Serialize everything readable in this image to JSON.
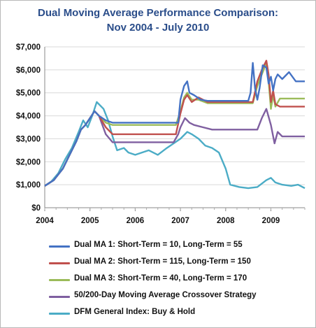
{
  "chart_data": {
    "type": "line",
    "title": "Dual Moving Average Performance Comparison:",
    "subtitle": "Nov 2004 - July 2010",
    "xlabel": "",
    "ylabel": "",
    "xlim": [
      2004.0,
      2009.75
    ],
    "ylim": [
      0,
      7000
    ],
    "x_ticks": [
      2004,
      2005,
      2006,
      2007,
      2008,
      2009
    ],
    "x_tick_labels": [
      "2004",
      "2005",
      "2006",
      "2007",
      "2008",
      "2009"
    ],
    "y_ticks": [
      0,
      1000,
      2000,
      3000,
      4000,
      5000,
      6000,
      7000
    ],
    "y_tick_labels": [
      "$0",
      "$1,000",
      "$2,000",
      "$3,000",
      "$4,000",
      "$5,000",
      "$6,000",
      "$7,000"
    ],
    "grid": "horizontal",
    "legend": "bottom",
    "series": [
      {
        "name": "Dual MA 1: Short-Term = 10, Long-Term = 55",
        "color": "#4472c4",
        "x": [
          2004.0,
          2004.2,
          2004.4,
          2004.55,
          2004.7,
          2004.8,
          2004.9,
          2005.0,
          2005.1,
          2005.2,
          2005.35,
          2005.5,
          2006.0,
          2006.6,
          2006.95,
          2007.0,
          2007.08,
          2007.15,
          2007.2,
          2007.3,
          2007.45,
          2007.6,
          2008.0,
          2008.5,
          2008.55,
          2008.6,
          2008.65,
          2008.7,
          2008.75,
          2008.82,
          2008.9,
          2008.95,
          2009.0,
          2009.05,
          2009.1,
          2009.15,
          2009.25,
          2009.4,
          2009.55,
          2009.75
        ],
        "y": [
          950,
          1200,
          1700,
          2300,
          2900,
          3400,
          3600,
          3900,
          4200,
          4000,
          3800,
          3700,
          3700,
          3700,
          3700,
          4700,
          5300,
          5500,
          5000,
          4900,
          4700,
          4650,
          4650,
          4650,
          5000,
          6300,
          5200,
          4700,
          5200,
          6200,
          6100,
          5400,
          5700,
          5100,
          5600,
          5800,
          5600,
          5900,
          5500,
          5500
        ]
      },
      {
        "name": "Dual MA 2: Short-Term = 115, Long-Term = 150",
        "color": "#c0504d",
        "x": [
          2004.0,
          2004.2,
          2004.4,
          2004.55,
          2004.7,
          2004.8,
          2004.9,
          2005.0,
          2005.1,
          2005.2,
          2005.35,
          2005.5,
          2006.0,
          2006.9,
          2007.0,
          2007.08,
          2007.15,
          2007.25,
          2007.4,
          2007.6,
          2008.0,
          2008.6,
          2008.7,
          2008.8,
          2008.9,
          2008.95,
          2009.0,
          2009.05,
          2009.1,
          2009.2,
          2009.4,
          2009.75
        ],
        "y": [
          950,
          1200,
          1700,
          2300,
          2900,
          3400,
          3600,
          3900,
          4200,
          4000,
          3500,
          3200,
          3200,
          3200,
          4100,
          4700,
          4900,
          4600,
          4800,
          4600,
          4600,
          4600,
          5500,
          6000,
          6400,
          5800,
          4600,
          5100,
          4500,
          4400,
          4400,
          4400
        ]
      },
      {
        "name": "Dual MA 3: Short-Term = 40, Long-Term = 170",
        "color": "#9bbb59",
        "x": [
          2004.0,
          2004.2,
          2004.4,
          2004.55,
          2004.7,
          2004.8,
          2004.9,
          2005.0,
          2005.1,
          2005.2,
          2005.35,
          2005.5,
          2006.0,
          2006.9,
          2007.0,
          2007.08,
          2007.15,
          2007.25,
          2007.4,
          2007.6,
          2008.0,
          2008.6,
          2008.7,
          2008.8,
          2008.9,
          2008.95,
          2009.0,
          2009.05,
          2009.1,
          2009.2,
          2009.4,
          2009.75
        ],
        "y": [
          950,
          1200,
          1700,
          2300,
          2900,
          3400,
          3600,
          3900,
          4200,
          4000,
          3700,
          3600,
          3600,
          3600,
          4200,
          4800,
          5000,
          4700,
          4700,
          4550,
          4550,
          4550,
          5300,
          5800,
          6300,
          5500,
          4300,
          4900,
          4400,
          4750,
          4750,
          4750
        ]
      },
      {
        "name": "50/200-Day Moving Average Crossover Strategy",
        "color": "#7f5fa0",
        "x": [
          2004.0,
          2004.2,
          2004.4,
          2004.55,
          2004.7,
          2004.8,
          2004.9,
          2005.0,
          2005.1,
          2005.2,
          2005.35,
          2005.5,
          2006.0,
          2006.85,
          2006.95,
          2007.0,
          2007.1,
          2007.2,
          2007.3,
          2007.5,
          2007.7,
          2008.0,
          2008.7,
          2008.8,
          2008.9,
          2009.0,
          2009.08,
          2009.15,
          2009.25,
          2009.4,
          2009.75
        ],
        "y": [
          950,
          1200,
          1700,
          2300,
          2900,
          3400,
          3600,
          3900,
          4200,
          4000,
          3200,
          2850,
          2850,
          2850,
          3200,
          3500,
          3900,
          3700,
          3600,
          3500,
          3400,
          3400,
          3400,
          3900,
          4300,
          3600,
          2800,
          3300,
          3100,
          3100,
          3100
        ]
      },
      {
        "name": "DFM General Index: Buy & Hold",
        "color": "#4bacc6",
        "x": [
          2004.0,
          2004.15,
          2004.3,
          2004.45,
          2004.6,
          2004.75,
          2004.85,
          2004.95,
          2005.05,
          2005.15,
          2005.3,
          2005.4,
          2005.5,
          2005.6,
          2005.75,
          2005.85,
          2006.0,
          2006.15,
          2006.3,
          2006.5,
          2006.7,
          2006.85,
          2007.0,
          2007.15,
          2007.25,
          2007.4,
          2007.55,
          2007.7,
          2007.85,
          2008.0,
          2008.1,
          2008.3,
          2008.5,
          2008.7,
          2008.9,
          2009.0,
          2009.1,
          2009.25,
          2009.45,
          2009.6,
          2009.75
        ],
        "y": [
          950,
          1150,
          1500,
          2100,
          2600,
          3300,
          3800,
          3500,
          4000,
          4600,
          4300,
          3800,
          3100,
          2500,
          2600,
          2400,
          2300,
          2400,
          2500,
          2300,
          2600,
          2800,
          3000,
          3300,
          3200,
          3000,
          2700,
          2600,
          2400,
          1700,
          1000,
          900,
          850,
          900,
          1200,
          1300,
          1100,
          1000,
          950,
          1000,
          850
        ]
      }
    ]
  }
}
